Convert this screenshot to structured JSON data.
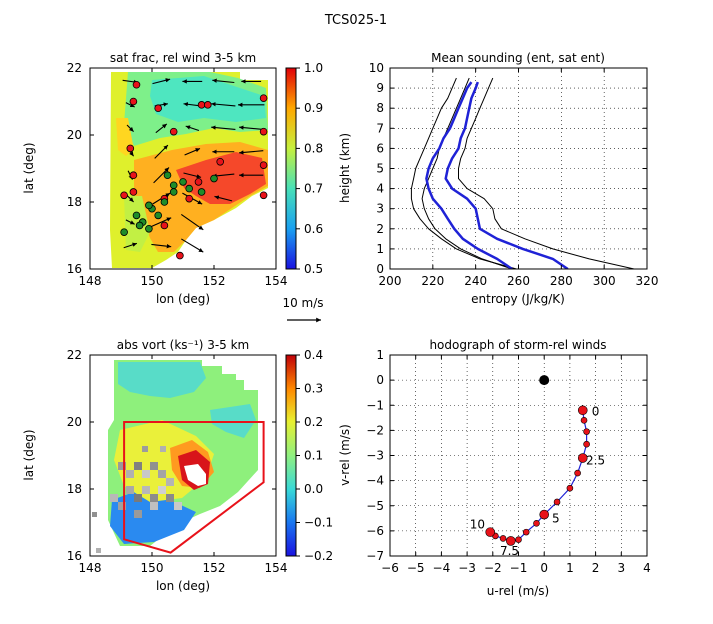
{
  "figure_title": "TCS025-1",
  "colors": {
    "red": "#e8121a",
    "green": "#1e8c2a",
    "blue": "#1f22d6",
    "black": "#000000"
  },
  "chart_data": [
    {
      "id": "satfrac",
      "type": "heatmap",
      "title": "sat frac, rel wind 3-5 km",
      "xlabel": "lon (deg)",
      "ylabel": "lat (deg)",
      "xlim": [
        148,
        154
      ],
      "ylim": [
        16,
        22
      ],
      "xticks": [
        "148",
        "150",
        "152",
        "154"
      ],
      "yticks": [
        "16",
        "18",
        "20",
        "22"
      ],
      "colorbar": {
        "min": 0.5,
        "max": 1.0,
        "ticks": [
          "0.5",
          "0.6",
          "0.7",
          "0.8",
          "0.9",
          "1.0"
        ]
      },
      "wind_scale_label": "10 m/s",
      "red_markers": [
        [
          149.5,
          21.5
        ],
        [
          149.4,
          21.0
        ],
        [
          150.2,
          20.8
        ],
        [
          151.6,
          20.9
        ],
        [
          151.8,
          20.9
        ],
        [
          153.6,
          21.1
        ],
        [
          153.6,
          20.1
        ],
        [
          153.6,
          19.1
        ],
        [
          153.6,
          18.2
        ],
        [
          149.3,
          19.6
        ],
        [
          150.7,
          20.1
        ],
        [
          149.4,
          18.8
        ],
        [
          150.4,
          18.1
        ],
        [
          151.2,
          18.1
        ],
        [
          150.9,
          16.4
        ],
        [
          152.2,
          19.2
        ],
        [
          151.5,
          18.6
        ],
        [
          150.4,
          17.3
        ],
        [
          149.4,
          18.3
        ],
        [
          149.1,
          18.2
        ]
      ],
      "green_markers": [
        [
          150.0,
          17.8
        ],
        [
          150.4,
          18.0
        ],
        [
          150.7,
          18.5
        ],
        [
          150.5,
          18.8
        ],
        [
          150.7,
          18.3
        ],
        [
          151.0,
          18.6
        ],
        [
          151.2,
          18.4
        ],
        [
          151.6,
          18.3
        ],
        [
          152.0,
          18.7
        ],
        [
          149.5,
          17.6
        ],
        [
          149.7,
          17.4
        ],
        [
          149.9,
          17.2
        ],
        [
          149.6,
          17.3
        ],
        [
          150.2,
          17.6
        ],
        [
          149.9,
          17.9
        ],
        [
          149.1,
          17.1
        ]
      ],
      "wind_vectors": [
        [
          149.3,
          21.6,
          7,
          -1
        ],
        [
          150.3,
          21.6,
          8,
          2
        ],
        [
          151.3,
          21.6,
          -9,
          0
        ],
        [
          152.3,
          21.6,
          -10,
          1
        ],
        [
          153.2,
          21.6,
          -9,
          0
        ],
        [
          149.3,
          20.9,
          4,
          -2
        ],
        [
          150.3,
          20.9,
          6,
          1
        ],
        [
          151.3,
          20.9,
          -8,
          1
        ],
        [
          152.3,
          20.9,
          -11,
          1
        ],
        [
          153.2,
          20.9,
          -12,
          0
        ],
        [
          149.3,
          20.2,
          3,
          -3
        ],
        [
          150.3,
          20.2,
          5,
          4
        ],
        [
          151.3,
          20.2,
          -6,
          2
        ],
        [
          152.3,
          20.2,
          -11,
          1
        ],
        [
          153.2,
          20.2,
          -11,
          1
        ],
        [
          149.3,
          19.5,
          3,
          -4
        ],
        [
          150.3,
          19.5,
          6,
          6
        ],
        [
          151.3,
          19.5,
          7,
          3
        ],
        [
          152.3,
          19.5,
          -10,
          0
        ],
        [
          153.2,
          19.5,
          -11,
          -1
        ],
        [
          149.3,
          18.8,
          2,
          -4
        ],
        [
          150.3,
          18.8,
          7,
          7
        ],
        [
          151.3,
          18.8,
          8,
          -2
        ],
        [
          152.3,
          18.8,
          -10,
          -1
        ],
        [
          153.2,
          18.8,
          -11,
          0
        ],
        [
          149.3,
          18.1,
          3,
          -3
        ],
        [
          150.3,
          18.1,
          8,
          5
        ],
        [
          151.3,
          18.1,
          9,
          -5
        ],
        [
          152.3,
          18.1,
          -8,
          2
        ],
        [
          149.3,
          17.4,
          4,
          -2
        ],
        [
          150.3,
          17.4,
          9,
          4
        ],
        [
          151.3,
          17.4,
          10,
          -7
        ],
        [
          149.3,
          16.7,
          6,
          2
        ],
        [
          150.3,
          16.7,
          9,
          -1
        ],
        [
          151.3,
          16.7,
          10,
          -6
        ]
      ]
    },
    {
      "id": "sounding",
      "type": "line",
      "title": "Mean sounding (ent, sat ent)",
      "xlabel": "entropy (J/kg/K)",
      "ylabel": "height (km)",
      "xlim": [
        200,
        320
      ],
      "ylim": [
        0,
        10
      ],
      "xticks": [
        "200",
        "220",
        "240",
        "260",
        "280",
        "300",
        "320"
      ],
      "yticks": [
        "0",
        "1",
        "2",
        "3",
        "4",
        "5",
        "6",
        "7",
        "8",
        "9",
        "10"
      ],
      "series": [
        {
          "color": "black",
          "width": 1,
          "points": [
            [
              314,
              0
            ],
            [
              293,
              0.5
            ],
            [
              276,
              1.0
            ],
            [
              263,
              1.5
            ],
            [
              252,
              2.0
            ],
            [
              249,
              2.5
            ],
            [
              248,
              3.0
            ],
            [
              244,
              3.5
            ],
            [
              236,
              4.0
            ],
            [
              232,
              4.5
            ],
            [
              232,
              5.0
            ],
            [
              233,
              5.5
            ],
            [
              235,
              6.0
            ],
            [
              236,
              6.5
            ],
            [
              238,
              7.0
            ],
            [
              240,
              7.5
            ],
            [
              242,
              8.0
            ],
            [
              244,
              8.5
            ],
            [
              246,
              9.0
            ],
            [
              248,
              9.5
            ]
          ]
        },
        {
          "color": "black",
          "width": 1,
          "points": [
            [
              259,
              0
            ],
            [
              242,
              0.5
            ],
            [
              231,
              1.0
            ],
            [
              224,
              1.5
            ],
            [
              218,
              2.0
            ],
            [
              214,
              2.5
            ],
            [
              211,
              3.0
            ],
            [
              210,
              3.5
            ],
            [
              210,
              4.0
            ],
            [
              211,
              4.5
            ],
            [
              212,
              5.0
            ],
            [
              214,
              5.5
            ],
            [
              216,
              6.0
            ],
            [
              218,
              6.5
            ],
            [
              220,
              7.0
            ],
            [
              222,
              7.5
            ],
            [
              224,
              8.0
            ],
            [
              227,
              8.5
            ],
            [
              229,
              9.0
            ],
            [
              231,
              9.5
            ]
          ]
        },
        {
          "color": "black",
          "width": 1,
          "points": [
            [
              257,
              0
            ],
            [
              243,
              0.5
            ],
            [
              233,
              1.0
            ],
            [
              226,
              1.5
            ],
            [
              221,
              2.0
            ],
            [
              218,
              2.5
            ],
            [
              216,
              3.0
            ],
            [
              215,
              3.5
            ],
            [
              216,
              4.0
            ],
            [
              218,
              4.5
            ],
            [
              220,
              5.0
            ],
            [
              222,
              5.5
            ],
            [
              223,
              6.0
            ],
            [
              225,
              6.5
            ],
            [
              227,
              7.0
            ],
            [
              229,
              7.5
            ],
            [
              231,
              8.0
            ],
            [
              233,
              8.5
            ],
            [
              235,
              9.0
            ],
            [
              237,
              9.5
            ]
          ]
        },
        {
          "color": "blue",
          "width": 2.5,
          "points": [
            [
              283,
              0
            ],
            [
              276,
              0.5
            ],
            [
              262,
              1.0
            ],
            [
              250,
              1.5
            ],
            [
              242,
              2.0
            ],
            [
              241,
              2.5
            ],
            [
              240,
              3.0
            ],
            [
              236,
              3.5
            ],
            [
              229,
              4.0
            ],
            [
              226,
              4.5
            ],
            [
              227,
              5.0
            ],
            [
              229,
              5.5
            ],
            [
              232,
              6.0
            ],
            [
              233,
              6.5
            ],
            [
              235,
              7.0
            ],
            [
              236,
              7.5
            ],
            [
              237,
              8.0
            ],
            [
              238,
              8.5
            ],
            [
              240,
              9.0
            ],
            [
              241,
              9.3
            ]
          ]
        },
        {
          "color": "blue",
          "width": 2.5,
          "points": [
            [
              257,
              0
            ],
            [
              250,
              0.5
            ],
            [
              241,
              1.0
            ],
            [
              234,
              1.5
            ],
            [
              230,
              2.0
            ],
            [
              227,
              2.5
            ],
            [
              224,
              3.0
            ],
            [
              220,
              3.5
            ],
            [
              218,
              4.0
            ],
            [
              217,
              4.5
            ],
            [
              218,
              5.0
            ],
            [
              220,
              5.5
            ],
            [
              223,
              6.0
            ],
            [
              225,
              6.5
            ],
            [
              228,
              7.0
            ],
            [
              230,
              7.5
            ],
            [
              232,
              8.0
            ],
            [
              234,
              8.5
            ],
            [
              236,
              9.0
            ],
            [
              238,
              9.3
            ]
          ]
        }
      ]
    },
    {
      "id": "absvort",
      "type": "heatmap",
      "title": "abs vort (ks⁻¹) 3-5 km",
      "xlabel": "lon (deg)",
      "ylabel": "lat (deg)",
      "xlim": [
        148,
        154
      ],
      "ylim": [
        16,
        22
      ],
      "xticks": [
        "148",
        "150",
        "152",
        "154"
      ],
      "yticks": [
        "16",
        "18",
        "20",
        "22"
      ],
      "colorbar": {
        "min": -0.2,
        "max": 0.4,
        "ticks": [
          "−0.2",
          "−0.1",
          "0.0",
          "0.1",
          "0.2",
          "0.3",
          "0.4"
        ]
      },
      "polygon": [
        [
          149.1,
          20.0
        ],
        [
          153.6,
          20.0
        ],
        [
          153.6,
          18.2
        ],
        [
          150.6,
          16.1
        ],
        [
          149.1,
          16.5
        ]
      ]
    },
    {
      "id": "hodograph",
      "type": "line",
      "title": "hodograph of storm-rel winds",
      "xlabel": "u-rel (m/s)",
      "ylabel": "v-rel (m/s)",
      "xlim": [
        -6,
        4
      ],
      "ylim": [
        -7,
        1
      ],
      "xticks": [
        "−6",
        "−5",
        "−4",
        "−3",
        "−2",
        "−1",
        "0",
        "1",
        "2",
        "3",
        "4"
      ],
      "yticks": [
        "−7",
        "−6",
        "−5",
        "−4",
        "−3",
        "−2",
        "−1",
        "0",
        "1"
      ],
      "origin": [
        0,
        0
      ],
      "points": [
        [
          1.5,
          -1.2
        ],
        [
          1.55,
          -1.6
        ],
        [
          1.65,
          -2.05
        ],
        [
          1.65,
          -2.55
        ],
        [
          1.5,
          -3.1
        ],
        [
          1.3,
          -3.7
        ],
        [
          1.0,
          -4.3
        ],
        [
          0.5,
          -4.85
        ],
        [
          0.0,
          -5.35
        ],
        [
          -0.3,
          -5.7
        ],
        [
          -0.7,
          -6.05
        ],
        [
          -1.0,
          -6.35
        ],
        [
          -1.3,
          -6.4
        ],
        [
          -1.6,
          -6.3
        ],
        [
          -1.9,
          -6.2
        ],
        [
          -2.1,
          -6.05
        ]
      ],
      "big_indices": [
        0,
        4,
        8,
        12,
        15
      ],
      "labels": [
        {
          "text": "0",
          "u": 2.0,
          "v": -1.25
        },
        {
          "text": "2.5",
          "u": 2.0,
          "v": -3.2
        },
        {
          "text": "5",
          "u": 0.45,
          "v": -5.5
        },
        {
          "text": "7.5",
          "u": -1.35,
          "v": -6.8
        },
        {
          "text": "10",
          "u": -2.6,
          "v": -5.75
        }
      ]
    }
  ]
}
